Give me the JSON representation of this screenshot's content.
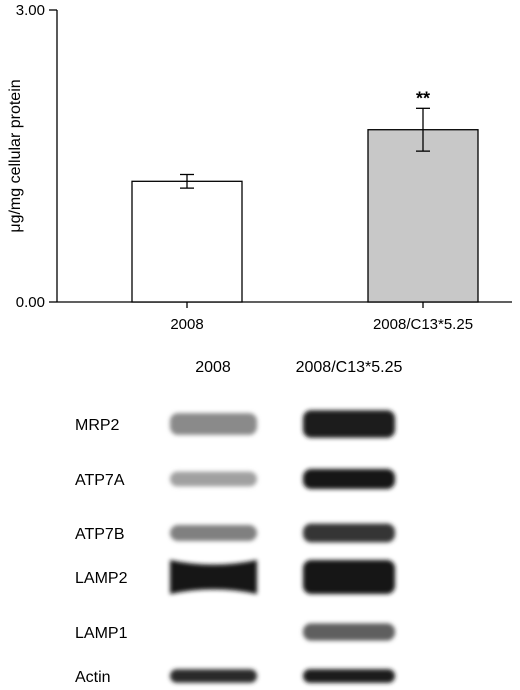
{
  "chart_data": {
    "type": "bar",
    "title": "",
    "xlabel": "",
    "ylabel": "μg/mg cellular protein",
    "ylim": [
      0,
      3.0
    ],
    "yticks": [
      "3.00",
      "0.00"
    ],
    "categories": [
      "2008",
      "2008/C13*5.25"
    ],
    "values": [
      1.24,
      1.77
    ],
    "errors": [
      0.07,
      0.22
    ],
    "bar_colors": [
      "#ffffff",
      "#c8c8c8"
    ],
    "annotations": [
      {
        "category": "2008/C13*5.25",
        "text": "**"
      }
    ],
    "grid": false,
    "legend": "none"
  },
  "blot": {
    "lanes": [
      "2008",
      "2008/C13*5.25"
    ],
    "rows": [
      {
        "label": "MRP2",
        "bands": [
          0.45,
          0.95
        ]
      },
      {
        "label": "ATP7A",
        "bands": [
          0.35,
          1.0
        ]
      },
      {
        "label": "ATP7B",
        "bands": [
          0.5,
          0.85
        ]
      },
      {
        "label": "LAMP2",
        "bands": [
          1.0,
          1.0
        ]
      },
      {
        "label": "LAMP1",
        "bands": [
          0.0,
          0.65
        ]
      },
      {
        "label": "Actin",
        "bands": [
          0.9,
          0.95
        ]
      }
    ]
  }
}
